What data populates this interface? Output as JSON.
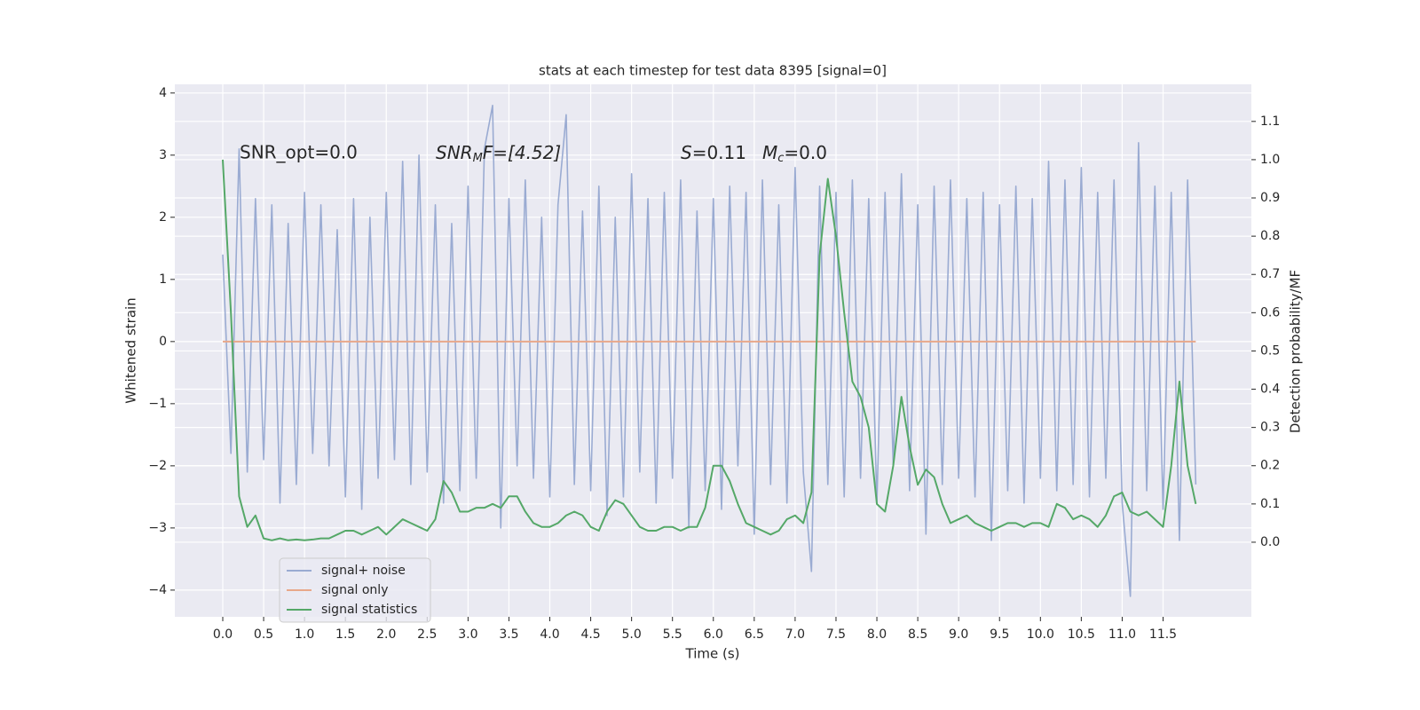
{
  "chart_data": {
    "type": "line",
    "title": "stats at each timestep for test data 8395 [signal=0]",
    "xlabel": "Time (s)",
    "ylabel": "Whitened strain",
    "y2label": "Detection probability/MF",
    "annotations": [
      {
        "text": "SNR_opt=0.0"
      },
      {
        "parts": [
          "SNR",
          "M",
          "F=[4.52]"
        ]
      },
      {
        "parts": [
          "S",
          "=0.11"
        ]
      },
      {
        "parts": [
          "M",
          "c",
          "=0.0"
        ]
      }
    ],
    "x": [
      0,
      0.1,
      0.2,
      0.3,
      0.4,
      0.5,
      0.6,
      0.7,
      0.8,
      0.9,
      1,
      1.1,
      1.2,
      1.3,
      1.4,
      1.5,
      1.6,
      1.7,
      1.8,
      1.9,
      2,
      2.1,
      2.2,
      2.3,
      2.4,
      2.5,
      2.6,
      2.7,
      2.8,
      2.9,
      3,
      3.1,
      3.2,
      3.3,
      3.4,
      3.5,
      3.6,
      3.7,
      3.8,
      3.9,
      4,
      4.1,
      4.2,
      4.3,
      4.4,
      4.5,
      4.6,
      4.7,
      4.8,
      4.9,
      5,
      5.1,
      5.2,
      5.3,
      5.4,
      5.5,
      5.6,
      5.7,
      5.8,
      5.9,
      6,
      6.1,
      6.2,
      6.3,
      6.4,
      6.5,
      6.6,
      6.7,
      6.8,
      6.9,
      7,
      7.1,
      7.2,
      7.3,
      7.4,
      7.5,
      7.6,
      7.7,
      7.8,
      7.9,
      8,
      8.1,
      8.2,
      8.3,
      8.4,
      8.5,
      8.6,
      8.7,
      8.8,
      8.9,
      9,
      9.1,
      9.2,
      9.3,
      9.4,
      9.5,
      9.6,
      9.7,
      9.8,
      9.9,
      10,
      10.1,
      10.2,
      10.3,
      10.4,
      10.5,
      10.6,
      10.7,
      10.8,
      10.9,
      11,
      11.1,
      11.2,
      11.3,
      11.4,
      11.5,
      11.6,
      11.7,
      11.8,
      11.9
    ],
    "series": [
      {
        "name": "signal+ noise",
        "color": "#9aabd2",
        "values": [
          1.4,
          -1.8,
          3.1,
          -2.1,
          2.3,
          -1.9,
          2.2,
          -2.6,
          1.9,
          -2.3,
          2.4,
          -1.8,
          2.2,
          -2.0,
          1.8,
          -2.5,
          2.3,
          -2.7,
          2.0,
          -2.2,
          2.4,
          -1.9,
          2.9,
          -2.3,
          3.0,
          -2.1,
          2.2,
          -2.6,
          1.9,
          -2.4,
          2.5,
          -2.2,
          3.1,
          3.8,
          -3.0,
          2.3,
          -2.0,
          2.6,
          -2.2,
          2.0,
          -2.5,
          2.2,
          3.65,
          -2.3,
          2.1,
          -2.4,
          2.5,
          -2.8,
          2.0,
          -2.5,
          2.7,
          -2.1,
          2.3,
          -2.6,
          2.4,
          -2.2,
          2.6,
          -3.0,
          2.1,
          -2.4,
          2.3,
          -2.7,
          2.5,
          -2.0,
          2.4,
          -3.1,
          2.6,
          -2.3,
          2.2,
          -2.6,
          2.8,
          -2.1,
          -3.7,
          2.5,
          -2.3,
          2.4,
          -2.5,
          2.6,
          -2.2,
          2.3,
          -2.6,
          2.4,
          -2.0,
          2.7,
          -2.4,
          2.2,
          -3.1,
          2.5,
          -2.3,
          2.6,
          -2.2,
          2.3,
          -2.5,
          2.4,
          -3.2,
          2.2,
          -2.4,
          2.5,
          -2.6,
          2.3,
          -2.2,
          2.9,
          -2.4,
          2.6,
          -2.3,
          2.8,
          -2.5,
          2.4,
          -2.2,
          2.6,
          -2.6,
          -4.1,
          3.2,
          -2.4,
          2.5,
          -2.7,
          2.4,
          -3.2,
          2.6,
          -2.3
        ]
      },
      {
        "name": "signal only",
        "color": "#e8a88a",
        "values": [
          0,
          0,
          0,
          0,
          0,
          0,
          0,
          0,
          0,
          0,
          0,
          0,
          0,
          0,
          0,
          0,
          0,
          0,
          0,
          0,
          0,
          0,
          0,
          0,
          0,
          0,
          0,
          0,
          0,
          0,
          0,
          0,
          0,
          0,
          0,
          0,
          0,
          0,
          0,
          0,
          0,
          0,
          0,
          0,
          0,
          0,
          0,
          0,
          0,
          0,
          0,
          0,
          0,
          0,
          0,
          0,
          0,
          0,
          0,
          0,
          0,
          0,
          0,
          0,
          0,
          0,
          0,
          0,
          0,
          0,
          0,
          0,
          0,
          0,
          0,
          0,
          0,
          0,
          0,
          0,
          0,
          0,
          0,
          0,
          0,
          0,
          0,
          0,
          0,
          0,
          0,
          0,
          0,
          0,
          0,
          0,
          0,
          0,
          0,
          0,
          0,
          0,
          0,
          0,
          0,
          0,
          0,
          0,
          0,
          0,
          0,
          0,
          0,
          0,
          0,
          0,
          0,
          0,
          0,
          0
        ]
      },
      {
        "name": "signal statistics",
        "color": "#55a868",
        "axis": "y2",
        "values": [
          1.0,
          0.6,
          0.12,
          0.04,
          0.07,
          0.01,
          0.005,
          0.01,
          0.005,
          0.007,
          0.005,
          0.007,
          0.01,
          0.01,
          0.02,
          0.03,
          0.03,
          0.02,
          0.03,
          0.04,
          0.02,
          0.04,
          0.06,
          0.05,
          0.04,
          0.03,
          0.06,
          0.16,
          0.13,
          0.08,
          0.08,
          0.09,
          0.09,
          0.1,
          0.09,
          0.12,
          0.12,
          0.08,
          0.05,
          0.04,
          0.04,
          0.05,
          0.07,
          0.08,
          0.07,
          0.04,
          0.03,
          0.08,
          0.11,
          0.1,
          0.07,
          0.04,
          0.03,
          0.03,
          0.04,
          0.04,
          0.03,
          0.04,
          0.04,
          0.09,
          0.2,
          0.2,
          0.16,
          0.1,
          0.05,
          0.04,
          0.03,
          0.02,
          0.03,
          0.06,
          0.07,
          0.05,
          0.13,
          0.75,
          0.95,
          0.8,
          0.6,
          0.42,
          0.38,
          0.3,
          0.1,
          0.08,
          0.2,
          0.38,
          0.25,
          0.15,
          0.19,
          0.17,
          0.1,
          0.05,
          0.06,
          0.07,
          0.05,
          0.04,
          0.03,
          0.04,
          0.05,
          0.05,
          0.04,
          0.05,
          0.05,
          0.04,
          0.1,
          0.09,
          0.06,
          0.07,
          0.06,
          0.04,
          0.07,
          0.12,
          0.13,
          0.08,
          0.07,
          0.08,
          0.06,
          0.04,
          0.2,
          0.42,
          0.2,
          0.1
        ]
      }
    ],
    "xlim": [
      -0.586,
      12.58
    ],
    "xticks": [
      {
        "value": 0,
        "label": "0.0"
      },
      0.5,
      {
        "value": 1,
        "label": "1.0"
      },
      1.5,
      {
        "value": 2,
        "label": "2.0"
      },
      2.5,
      {
        "value": 3,
        "label": "3.0"
      },
      3.5,
      {
        "value": 4,
        "label": "4.0"
      },
      4.5,
      {
        "value": 5,
        "label": "5.0"
      },
      5.5,
      {
        "value": 6,
        "label": "6.0"
      },
      6.5,
      {
        "value": 7,
        "label": "7.0"
      },
      7.5,
      {
        "value": 8,
        "label": "8.0"
      },
      8.5,
      {
        "value": 9,
        "label": "9.0"
      },
      9.5,
      {
        "value": 10,
        "label": "10.0"
      },
      10.5,
      {
        "value": 11,
        "label": "11.0"
      },
      11.5
    ],
    "ylim": [
      -4.43,
      4.14
    ],
    "yticks": [
      {
        "value": -4,
        "label": "−4"
      },
      {
        "value": -3,
        "label": "−3"
      },
      {
        "value": -2,
        "label": "−2"
      },
      {
        "value": -1,
        "label": "−1"
      },
      0,
      1,
      2,
      3,
      4
    ],
    "y2lim": [
      -0.195,
      1.197
    ],
    "y2ticks": [
      {
        "value": 0,
        "label": "0.0"
      },
      0.1,
      0.2,
      0.3,
      0.4,
      0.5,
      0.6,
      0.7,
      0.8,
      0.9,
      {
        "value": 1,
        "label": "1.0"
      },
      1.1
    ],
    "grid": true,
    "legend": "lower left"
  }
}
